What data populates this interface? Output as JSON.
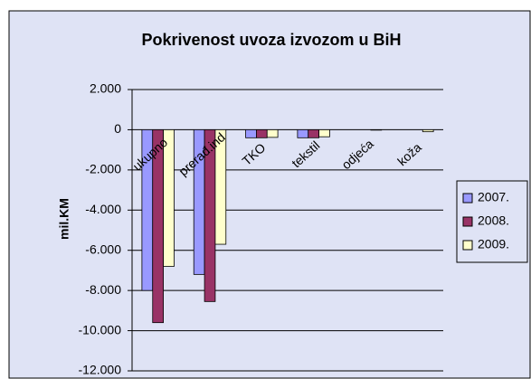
{
  "chart_data": {
    "type": "bar",
    "title": "Pokrivenost uvoza izvozom u BiH",
    "y_label": "mil.KM",
    "categories": [
      "ukupno",
      "prerađ.ind",
      "TKO",
      "tekstil",
      "odjeća",
      "koža"
    ],
    "series": [
      {
        "name": "2007.",
        "color": "#9999ff",
        "values": [
          -8000,
          -7200,
          -400,
          -400,
          0,
          0
        ]
      },
      {
        "name": "2008.",
        "color": "#993366",
        "values": [
          -9600,
          -8550,
          -400,
          -400,
          0,
          0
        ]
      },
      {
        "name": "2009.",
        "color": "#ffffcc",
        "values": [
          -6800,
          -5700,
          -380,
          -350,
          -20,
          -100
        ]
      }
    ],
    "ylim": [
      -12000,
      2000
    ],
    "yticks": [
      {
        "value": -12000,
        "label": "-12.000"
      },
      {
        "value": -10000,
        "label": "-10.000"
      },
      {
        "value": -8000,
        "label": "-8.000"
      },
      {
        "value": -6000,
        "label": "-6.000"
      },
      {
        "value": -4000,
        "label": "-4.000"
      },
      {
        "value": -2000,
        "label": "-2.000"
      },
      0,
      {
        "value": 2000,
        "label": "2.000"
      }
    ],
    "grid": true,
    "legend": "right"
  }
}
